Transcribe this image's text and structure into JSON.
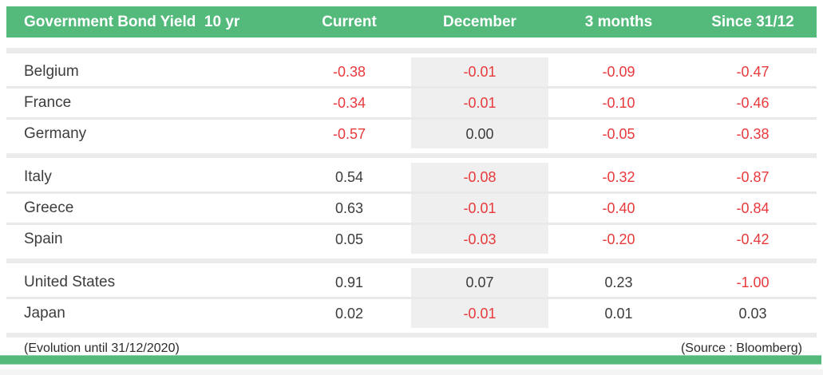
{
  "chart_data": {
    "type": "table",
    "title": "Government Bond Yield  10 yr",
    "columns": [
      "Current",
      "December",
      "3 months",
      "Since 31/12"
    ],
    "groups": [
      {
        "rows": [
          {
            "country": "Belgium",
            "values": [
              "-0.38",
              "-0.01",
              "-0.09",
              "-0.47"
            ]
          },
          {
            "country": "France",
            "values": [
              "-0.34",
              "-0.01",
              "-0.10",
              "-0.46"
            ]
          },
          {
            "country": "Germany",
            "values": [
              "-0.57",
              "0.00",
              "-0.05",
              "-0.38"
            ]
          }
        ]
      },
      {
        "rows": [
          {
            "country": "Italy",
            "values": [
              "0.54",
              "-0.08",
              "-0.32",
              "-0.87"
            ]
          },
          {
            "country": "Greece",
            "values": [
              "0.63",
              "-0.01",
              "-0.40",
              "-0.84"
            ]
          },
          {
            "country": "Spain",
            "values": [
              "0.05",
              "-0.03",
              "-0.20",
              "-0.42"
            ]
          }
        ]
      },
      {
        "rows": [
          {
            "country": "United States",
            "values": [
              "0.91",
              "0.07",
              "0.23",
              "-1.00"
            ]
          },
          {
            "country": "Japan",
            "values": [
              "0.02",
              "-0.01",
              "0.01",
              "0.03"
            ]
          }
        ]
      }
    ],
    "footer": {
      "left": "(Evolution until 31/12/2020)",
      "right": "(Source : Bloomberg)"
    },
    "layout_hints": {
      "negative_values_red": true,
      "december_column_shaded": true
    }
  },
  "colors": {
    "accent_green": "#53ba7b",
    "negative_red": "#e83a3d",
    "text_dark": "#3c3c3c",
    "band_gray": "#ebebeb",
    "december_band": "#efefef"
  }
}
